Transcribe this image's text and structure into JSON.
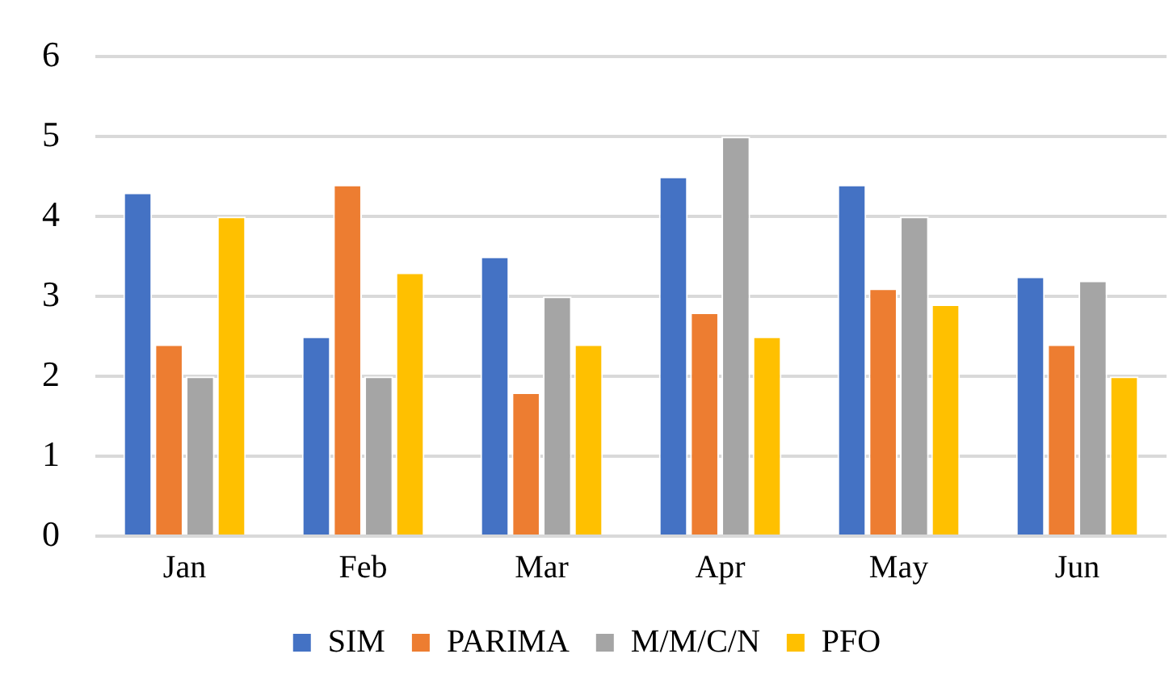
{
  "chart_data": {
    "type": "bar",
    "categories": [
      "Jan",
      "Feb",
      "Mar",
      "Apr",
      "May",
      "Jun"
    ],
    "series": [
      {
        "name": "SIM",
        "color": "#4472c4",
        "values": [
          4.3,
          2.5,
          3.5,
          4.5,
          4.4,
          3.25
        ]
      },
      {
        "name": "PARIMA",
        "color": "#ed7d31",
        "values": [
          2.4,
          4.4,
          1.8,
          2.8,
          3.1,
          2.4
        ]
      },
      {
        "name": "M/M/C/N",
        "color": "#a5a5a5",
        "values": [
          2,
          2,
          3,
          5,
          4,
          3.2
        ]
      },
      {
        "name": "PFO",
        "color": "#ffc000",
        "values": [
          4,
          3.3,
          2.4,
          2.5,
          2.9,
          2
        ]
      }
    ],
    "ylim": [
      0,
      6
    ],
    "yticks": [
      0,
      1,
      2,
      3,
      4,
      5,
      6
    ],
    "grid": "y",
    "legend": "bottom"
  }
}
